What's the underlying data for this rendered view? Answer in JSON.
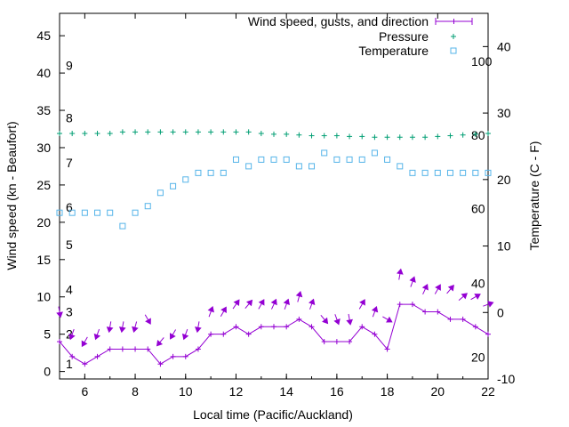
{
  "chart_data": {
    "type": "line",
    "title": "",
    "xlabel": "Local time (Pacific/Auckland)",
    "ylabel": "Wind speed (kn - Beaufort)",
    "y2label": "Temperature (C - F)",
    "xlim": [
      5,
      22
    ],
    "ylim": [
      -1,
      48
    ],
    "y2lim": [
      -10,
      45
    ],
    "x_ticks": [
      "6",
      "8",
      "10",
      "12",
      "14",
      "16",
      "18",
      "20",
      "22"
    ],
    "y_ticks": [
      "0",
      "5",
      "10",
      "15",
      "20",
      "25",
      "30",
      "35",
      "40",
      "45"
    ],
    "y2_ticks": [
      "-10",
      "0",
      "10",
      "20",
      "30",
      "40"
    ],
    "beaufort_labels": [
      {
        "label": "1",
        "y": 1
      },
      {
        "label": "2",
        "y": 5
      },
      {
        "label": "3",
        "y": 8
      },
      {
        "label": "4",
        "y": 11
      },
      {
        "label": "5",
        "y": 17
      },
      {
        "label": "6",
        "y": 22
      },
      {
        "label": "7",
        "y": 28
      },
      {
        "label": "8",
        "y": 34
      },
      {
        "label": "9",
        "y": 41
      }
    ],
    "fahrenheit_labels": [
      {
        "label": "20",
        "y2": -6.7
      },
      {
        "label": "40",
        "y2": 4.4
      },
      {
        "label": "60",
        "y2": 15.6
      },
      {
        "label": "80",
        "y2": 26.7
      },
      {
        "label": "100",
        "y2": 37.8
      }
    ],
    "legend": {
      "position": "top-right",
      "entries": [
        "Wind speed, gusts, and direction",
        "Pressure",
        "Temperature"
      ]
    },
    "colors": {
      "wind": "#9400d3",
      "pressure": "#009e73",
      "temperature": "#56b4e9"
    },
    "series": [
      {
        "name": "Wind speed, gusts, and direction",
        "axis": "y",
        "x": [
          5,
          5.5,
          6,
          6.5,
          7,
          7.5,
          8,
          8.5,
          9,
          9.5,
          10,
          10.5,
          11,
          11.5,
          12,
          12.5,
          13,
          13.5,
          14,
          14.5,
          15,
          15.5,
          16,
          16.5,
          17,
          17.5,
          18,
          18.5,
          19,
          19.5,
          20,
          20.5,
          21,
          21.5,
          22
        ],
        "y": [
          4,
          2,
          1,
          2,
          3,
          3,
          3,
          3,
          1,
          2,
          2,
          3,
          5,
          5,
          6,
          5,
          6,
          6,
          6,
          7,
          6,
          4,
          4,
          4,
          6,
          5,
          3,
          9,
          9,
          8,
          8,
          7,
          7,
          6,
          5
        ],
        "gusts": [
          8,
          5,
          4,
          5,
          6,
          6,
          6,
          7,
          4,
          5,
          5,
          6,
          8,
          8,
          9,
          9,
          9,
          9,
          9,
          10,
          9,
          7,
          7,
          7,
          9,
          8,
          7,
          13,
          12,
          11,
          11,
          11,
          10,
          10,
          9
        ],
        "direction_deg": [
          350,
          20,
          30,
          20,
          10,
          10,
          15,
          330,
          40,
          30,
          20,
          10,
          200,
          210,
          215,
          220,
          210,
          205,
          200,
          195,
          200,
          320,
          340,
          350,
          210,
          200,
          300,
          190,
          200,
          205,
          210,
          220,
          230,
          240,
          250
        ]
      },
      {
        "name": "Pressure",
        "axis": "y",
        "x": [
          5,
          5.5,
          6,
          6.5,
          7,
          7.5,
          8,
          8.5,
          9,
          9.5,
          10,
          10.5,
          11,
          11.5,
          12,
          12.5,
          13,
          13.5,
          14,
          14.5,
          15,
          15.5,
          16,
          16.5,
          17,
          17.5,
          18,
          18.5,
          19,
          19.5,
          20,
          20.5,
          21,
          21.5,
          22
        ],
        "y": [
          31.9,
          31.9,
          31.9,
          31.9,
          31.9,
          32.1,
          32.1,
          32.1,
          32.1,
          32.1,
          32.1,
          32.1,
          32.1,
          32.1,
          32.1,
          32.1,
          31.9,
          31.8,
          31.8,
          31.7,
          31.6,
          31.6,
          31.6,
          31.5,
          31.5,
          31.4,
          31.4,
          31.4,
          31.4,
          31.4,
          31.5,
          31.6,
          31.7,
          31.8,
          31.9
        ]
      },
      {
        "name": "Temperature",
        "axis": "y2",
        "x": [
          5,
          5.5,
          6,
          6.5,
          7,
          7.5,
          8,
          8.5,
          9,
          9.5,
          10,
          10.5,
          11,
          11.5,
          12,
          12.5,
          13,
          13.5,
          14,
          14.5,
          15,
          15.5,
          16,
          16.5,
          17,
          17.5,
          18,
          18.5,
          19,
          19.5,
          20,
          20.5,
          21,
          21.5,
          22
        ],
        "y": [
          15,
          15,
          15,
          15,
          15,
          13,
          15,
          16,
          18,
          19,
          20,
          21,
          21,
          21,
          23,
          22,
          23,
          23,
          23,
          22,
          22,
          24,
          23,
          23,
          23,
          24,
          23,
          22,
          21,
          21,
          21,
          21,
          21,
          21,
          21
        ]
      }
    ]
  }
}
